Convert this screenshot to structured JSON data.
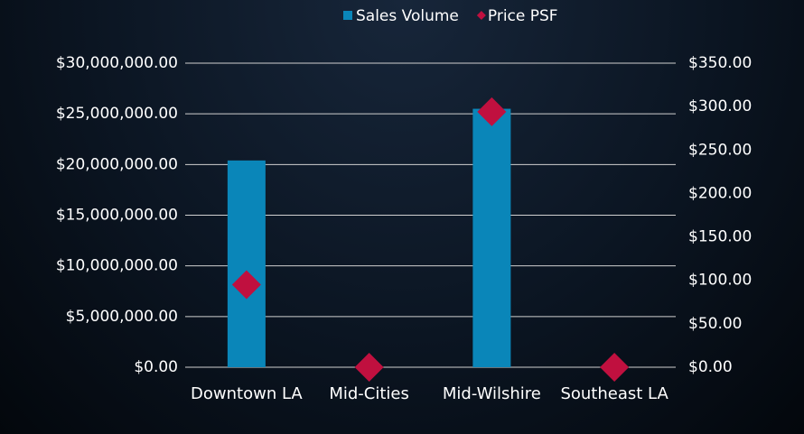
{
  "chart_data": {
    "type": "bar",
    "categories": [
      "Downtown LA",
      "Mid-Cities",
      "Mid-Wilshire",
      "Southeast LA"
    ],
    "series": [
      {
        "name": "Sales Volume",
        "type": "bar",
        "color": "#0a86b9",
        "values": [
          20400000,
          0,
          25500000,
          0
        ]
      },
      {
        "name": "Price PSF",
        "type": "scatter",
        "axis": "y2",
        "color": "#c0103f",
        "values": [
          95,
          0,
          294,
          0
        ]
      }
    ],
    "ylim": [
      0,
      30000000
    ],
    "yticks": [
      {
        "value": 0,
        "label": "$0.00"
      },
      {
        "value": 5000000,
        "label": "$5,000,000.00"
      },
      {
        "value": 10000000,
        "label": "$10,000,000.00"
      },
      {
        "value": 15000000,
        "label": "$15,000,000.00"
      },
      {
        "value": 20000000,
        "label": "$20,000,000.00"
      },
      {
        "value": 25000000,
        "label": "$25,000,000.00"
      },
      {
        "value": 30000000,
        "label": "$30,000,000.00"
      }
    ],
    "y2lim": [
      0,
      350
    ],
    "y2ticks": [
      {
        "value": 0,
        "label": "$0.00"
      },
      {
        "value": 50,
        "label": "$50.00"
      },
      {
        "value": 100,
        "label": "$100.00"
      },
      {
        "value": 150,
        "label": "$150.00"
      },
      {
        "value": 200,
        "label": "$200.00"
      },
      {
        "value": 250,
        "label": "$250.00"
      },
      {
        "value": 300,
        "label": "$300.00"
      },
      {
        "value": 350,
        "label": "$350.00"
      }
    ],
    "grid": true,
    "legend": "top"
  }
}
